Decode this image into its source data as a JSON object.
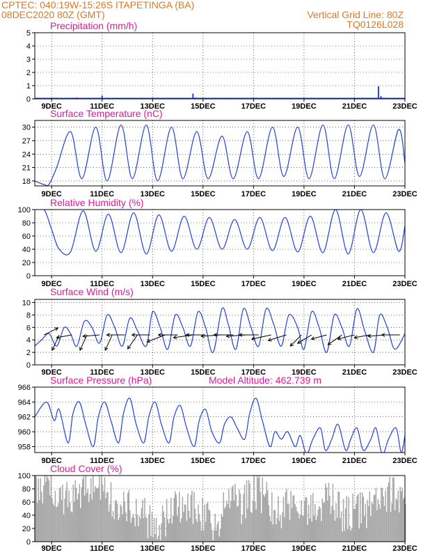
{
  "header": {
    "line1_left": "CPTEC:  040:19W-15:26S  ITAPETINGA (BA)",
    "line2_left": "08DEC2020 80Z (GMT)",
    "line2_right": "Vertical Grid Line: 80Z",
    "line3_right": "TQ0126L028"
  },
  "colors": {
    "header": "#e0781e",
    "panel_title": "#e0189a",
    "line": "#1f3fe0",
    "bars": "#a8a8a8",
    "wind_arrows": "#000000"
  },
  "x_axis": {
    "start_day": 8.333,
    "end_day": 23.0,
    "tick_days": [
      9,
      11,
      13,
      15,
      17,
      19,
      21,
      23
    ],
    "tick_labels": [
      "9DEC",
      "11DEC",
      "13DEC",
      "15DEC",
      "17DEC",
      "19DEC",
      "21DEC",
      "23DEC"
    ]
  },
  "chart_data": [
    {
      "type": "bar",
      "title": "Precipitation  (mm/h)",
      "ylim": [
        0,
        5
      ],
      "yticks": [
        0,
        1,
        2,
        3,
        4,
        5
      ],
      "grid": true,
      "events": [
        {
          "day": 10.0,
          "value": 0.1
        },
        {
          "day": 11.0,
          "value": 0.25
        },
        {
          "day": 12.5,
          "value": 0.08
        },
        {
          "day": 14.6,
          "value": 0.4
        },
        {
          "day": 14.7,
          "value": 0.1
        },
        {
          "day": 21.95,
          "value": 0.95
        },
        {
          "day": 22.05,
          "value": 0.2
        }
      ]
    },
    {
      "type": "line",
      "title": "Surface Temperature  (nC)",
      "ylim": [
        16.9,
        31.5
      ],
      "yticks": [
        18,
        21,
        24,
        27,
        30
      ],
      "grid": true,
      "x": [
        8.33,
        8.7,
        8.9,
        9.2,
        9.75,
        10.2,
        10.75,
        11.2,
        11.75,
        12.2,
        12.75,
        13.2,
        13.75,
        14.2,
        14.75,
        15.2,
        15.75,
        16.2,
        16.75,
        17.2,
        17.75,
        18.2,
        18.75,
        19.2,
        19.75,
        20.2,
        20.75,
        21.2,
        21.75,
        22.2,
        22.75,
        23.0
      ],
      "values": [
        18.0,
        17.2,
        17.3,
        21.0,
        29.0,
        18.5,
        30.0,
        18.0,
        30.5,
        18.5,
        30.5,
        18.0,
        30.0,
        18.5,
        29.0,
        18.5,
        28.0,
        18.5,
        29.0,
        18.5,
        30.0,
        19.0,
        30.0,
        18.5,
        30.5,
        18.5,
        30.5,
        19.0,
        30.5,
        18.5,
        29.5,
        22.0
      ]
    },
    {
      "type": "line",
      "title": "Relative Humidity  (%)",
      "ylim": [
        0,
        100
      ],
      "yticks": [
        0,
        20,
        40,
        60,
        80,
        100
      ],
      "grid": true,
      "x": [
        8.33,
        8.7,
        9.0,
        9.3,
        9.75,
        10.25,
        10.75,
        11.25,
        11.75,
        12.25,
        12.75,
        13.25,
        13.75,
        14.25,
        14.75,
        15.25,
        15.75,
        16.25,
        16.75,
        17.25,
        17.75,
        18.25,
        18.75,
        19.25,
        19.75,
        20.25,
        20.75,
        21.25,
        21.75,
        22.25,
        22.75,
        23.0
      ],
      "values": [
        100,
        100,
        70,
        40,
        36,
        98,
        37,
        93,
        35,
        95,
        33,
        92,
        37,
        90,
        40,
        88,
        40,
        85,
        40,
        88,
        38,
        88,
        36,
        90,
        35,
        100,
        33,
        100,
        35,
        95,
        37,
        75
      ]
    },
    {
      "type": "line",
      "title": "Surface Wind  (m/s)",
      "ylim": [
        0,
        10.5
      ],
      "yticks": [
        0,
        2,
        4,
        6,
        8,
        10
      ],
      "grid": true,
      "x": [
        8.33,
        8.6,
        8.9,
        9.2,
        9.5,
        9.75,
        10.0,
        10.3,
        10.6,
        10.9,
        11.2,
        11.5,
        11.8,
        12.1,
        12.4,
        12.75,
        13.0,
        13.3,
        13.6,
        13.9,
        14.2,
        14.5,
        14.8,
        15.1,
        15.4,
        15.75,
        16.0,
        16.3,
        16.6,
        16.9,
        17.2,
        17.5,
        17.8,
        18.1,
        18.4,
        18.75,
        19.0,
        19.3,
        19.6,
        19.9,
        20.2,
        20.5,
        20.8,
        21.1,
        21.4,
        21.75,
        22.0,
        22.3,
        22.6,
        23.0
      ],
      "values": [
        3.0,
        4.0,
        5.0,
        3.0,
        6.0,
        5.0,
        3.0,
        7.0,
        6.0,
        3.5,
        8.0,
        6.0,
        3.0,
        7.5,
        5.5,
        3.0,
        8.5,
        6.0,
        2.5,
        8.0,
        6.0,
        3.0,
        8.5,
        6.0,
        2.0,
        9.0,
        6.5,
        2.5,
        9.0,
        6.0,
        3.0,
        9.0,
        6.5,
        3.0,
        8.0,
        6.0,
        2.5,
        8.5,
        6.0,
        2.0,
        8.0,
        6.0,
        3.0,
        9.0,
        5.5,
        2.0,
        8.0,
        6.0,
        2.5,
        5.0
      ],
      "arrows": [
        {
          "day": 8.7,
          "dx": 20,
          "dy": -10
        },
        {
          "day": 9.3,
          "dx": -10,
          "dy": 22
        },
        {
          "day": 9.8,
          "dx": -22,
          "dy": 4
        },
        {
          "day": 10.4,
          "dx": -10,
          "dy": 22
        },
        {
          "day": 10.9,
          "dx": -24,
          "dy": 2
        },
        {
          "day": 11.4,
          "dx": -10,
          "dy": 22
        },
        {
          "day": 11.9,
          "dx": -26,
          "dy": 0
        },
        {
          "day": 12.4,
          "dx": -14,
          "dy": 20
        },
        {
          "day": 12.9,
          "dx": -26,
          "dy": 0
        },
        {
          "day": 13.5,
          "dx": -26,
          "dy": 10
        },
        {
          "day": 14.0,
          "dx": -28,
          "dy": 0
        },
        {
          "day": 14.6,
          "dx": -28,
          "dy": 4
        },
        {
          "day": 15.1,
          "dx": -28,
          "dy": 0
        },
        {
          "day": 15.7,
          "dx": -28,
          "dy": 2
        },
        {
          "day": 16.2,
          "dx": -28,
          "dy": 0
        },
        {
          "day": 16.7,
          "dx": -28,
          "dy": 2
        },
        {
          "day": 17.2,
          "dx": -28,
          "dy": 0
        },
        {
          "day": 17.7,
          "dx": -28,
          "dy": 6
        },
        {
          "day": 18.3,
          "dx": -26,
          "dy": 8
        },
        {
          "day": 18.9,
          "dx": -16,
          "dy": 16
        },
        {
          "day": 19.3,
          "dx": -20,
          "dy": 12
        },
        {
          "day": 19.9,
          "dx": -22,
          "dy": 6
        },
        {
          "day": 20.5,
          "dx": -20,
          "dy": 14
        },
        {
          "day": 21.0,
          "dx": -24,
          "dy": 6
        },
        {
          "day": 21.6,
          "dx": -22,
          "dy": 4
        },
        {
          "day": 22.2,
          "dx": -24,
          "dy": 2
        },
        {
          "day": 22.8,
          "dx": -26,
          "dy": 0
        }
      ]
    },
    {
      "type": "line",
      "title": "Surface Pressure  (hPa)",
      "annotation": "Model Altitude:  462.739  m",
      "ylim": [
        957.2,
        966
      ],
      "yticks": [
        958,
        960,
        962,
        964,
        966
      ],
      "grid": true,
      "x": [
        8.33,
        8.8,
        9.1,
        9.3,
        9.65,
        9.85,
        10.1,
        10.35,
        10.65,
        10.85,
        11.1,
        11.35,
        11.65,
        11.85,
        12.1,
        12.35,
        12.65,
        12.85,
        13.1,
        13.35,
        13.65,
        13.85,
        14.1,
        14.35,
        14.65,
        14.85,
        15.1,
        15.35,
        15.65,
        15.85,
        16.1,
        16.35,
        16.65,
        16.85,
        17.1,
        17.35,
        17.65,
        17.85,
        18.1,
        18.35,
        18.65,
        18.85,
        19.1,
        19.35,
        19.65,
        19.85,
        20.1,
        20.35,
        20.65,
        20.85,
        21.1,
        21.35,
        21.65,
        21.85,
        22.1,
        22.35,
        22.65,
        22.85,
        23.0
      ],
      "values": [
        962.0,
        964.0,
        961.5,
        963.0,
        958.5,
        962.5,
        964.0,
        961.0,
        958.0,
        962.0,
        964.0,
        961.5,
        958.5,
        962.5,
        964.5,
        961.0,
        958.5,
        962.0,
        964.0,
        961.0,
        958.5,
        962.0,
        963.5,
        960.5,
        958.0,
        961.5,
        963.0,
        960.0,
        958.5,
        961.0,
        962.0,
        960.5,
        959.0,
        962.5,
        964.5,
        961.5,
        958.0,
        960.0,
        959.0,
        960.0,
        958.0,
        959.5,
        957.0,
        959.0,
        960.5,
        957.5,
        959.0,
        961.0,
        957.5,
        959.0,
        960.5,
        957.5,
        959.0,
        960.5,
        957.0,
        959.0,
        960.5,
        957.2,
        959.5
      ]
    },
    {
      "type": "bar",
      "title": "Cloud Cover  (%)",
      "ylim": [
        0,
        100
      ],
      "yticks": [
        0,
        20,
        40,
        60,
        80,
        100
      ],
      "grid": true,
      "x_start": 8.333,
      "step_hours": 1,
      "segments": [
        [
          8.333,
          85
        ],
        [
          9.0,
          80
        ],
        [
          9.5,
          65
        ],
        [
          10.0,
          75
        ],
        [
          10.5,
          90
        ],
        [
          11.0,
          88
        ],
        [
          11.5,
          60
        ],
        [
          12.0,
          55
        ],
        [
          12.5,
          45
        ],
        [
          13.0,
          20
        ],
        [
          13.5,
          35
        ],
        [
          14.0,
          55
        ],
        [
          14.5,
          60
        ],
        [
          15.0,
          35
        ],
        [
          15.5,
          30
        ],
        [
          16.0,
          60
        ],
        [
          16.5,
          55
        ],
        [
          17.0,
          75
        ],
        [
          17.5,
          65
        ],
        [
          18.0,
          45
        ],
        [
          18.5,
          60
        ],
        [
          19.0,
          50
        ],
        [
          19.5,
          55
        ],
        [
          20.0,
          65
        ],
        [
          20.5,
          45
        ],
        [
          21.0,
          45
        ],
        [
          21.5,
          50
        ],
        [
          22.0,
          60
        ],
        [
          22.5,
          75
        ],
        [
          23.0,
          70
        ]
      ]
    }
  ]
}
